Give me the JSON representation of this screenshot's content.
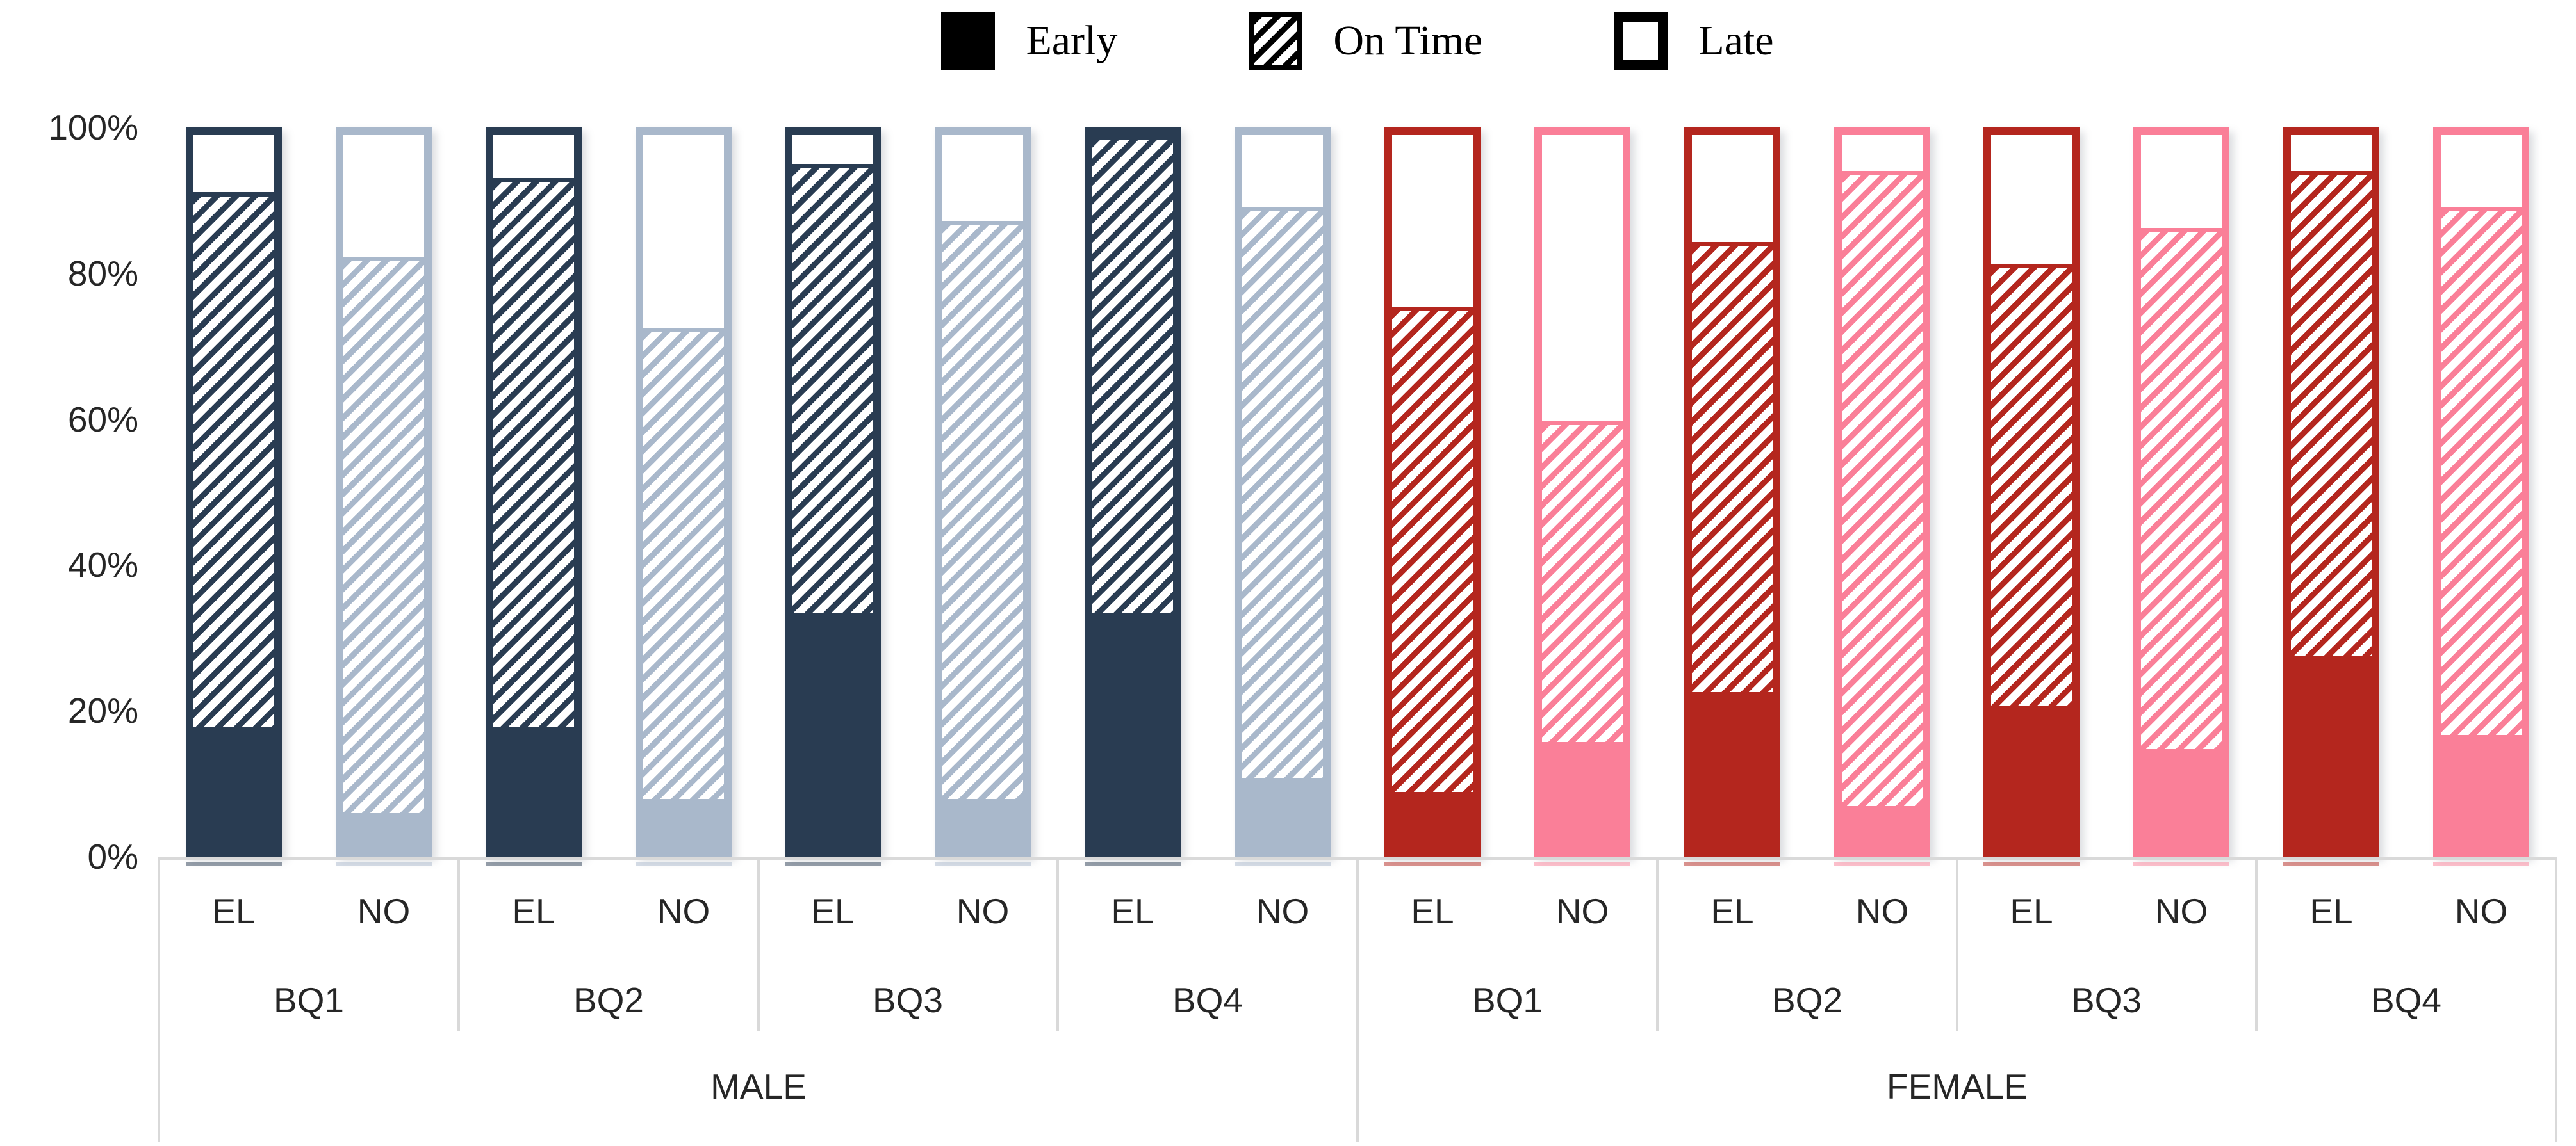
{
  "legend": {
    "items": [
      {
        "label": "Early",
        "swatch": "solid-black-square"
      },
      {
        "label": "On Time",
        "swatch": "hatched-square"
      },
      {
        "label": "Late",
        "swatch": "open-white-square"
      }
    ]
  },
  "y_axis": {
    "ticks": [
      "0%",
      "20%",
      "40%",
      "60%",
      "80%",
      "100%"
    ]
  },
  "x_axis": {
    "subgroups": [
      "EL",
      "NO"
    ],
    "groups": [
      "BQ1",
      "BQ2",
      "BQ3",
      "BQ4"
    ],
    "sections": [
      "MALE",
      "FEMALE"
    ]
  },
  "colors": {
    "male_el": "#293c52",
    "male_no": "#a9b8cb",
    "female_el": "#b4261e",
    "female_no": "#fa7f98",
    "axis_line": "#d9d9d9",
    "legend_black": "#000000",
    "text": "#262626"
  },
  "chart_data": {
    "type": "bar",
    "stacked": "percent",
    "title": "",
    "xlabel": "",
    "ylabel": "",
    "ylim": [
      0,
      100
    ],
    "grid": false,
    "legend_position": "top-center",
    "legend_entries": [
      "Early",
      "On Time",
      "Late"
    ],
    "sections": [
      {
        "label": "MALE",
        "el_color": "#293c52",
        "no_color": "#a9b8cb",
        "groups": [
          {
            "label": "BQ1",
            "bars": [
              {
                "label": "EL",
                "early": 17,
                "on_time": 75,
                "late": 8
              },
              {
                "label": "NO",
                "early": 5,
                "on_time": 78,
                "late": 17
              }
            ]
          },
          {
            "label": "BQ2",
            "bars": [
              {
                "label": "EL",
                "early": 17,
                "on_time": 77,
                "late": 6
              },
              {
                "label": "NO",
                "early": 7,
                "on_time": 66,
                "late": 27
              }
            ]
          },
          {
            "label": "BQ3",
            "bars": [
              {
                "label": "EL",
                "early": 33,
                "on_time": 63,
                "late": 4
              },
              {
                "label": "NO",
                "early": 7,
                "on_time": 81,
                "late": 12
              }
            ]
          },
          {
            "label": "BQ4",
            "bars": [
              {
                "label": "EL",
                "early": 33,
                "on_time": 67,
                "late": 0
              },
              {
                "label": "NO",
                "early": 10,
                "on_time": 80,
                "late": 10
              }
            ]
          }
        ]
      },
      {
        "label": "FEMALE",
        "el_color": "#b4261e",
        "no_color": "#fa7f98",
        "groups": [
          {
            "label": "BQ1",
            "bars": [
              {
                "label": "EL",
                "early": 8,
                "on_time": 68,
                "late": 24
              },
              {
                "label": "NO",
                "early": 15,
                "on_time": 45,
                "late": 40
              }
            ]
          },
          {
            "label": "BQ2",
            "bars": [
              {
                "label": "EL",
                "early": 22,
                "on_time": 63,
                "late": 15
              },
              {
                "label": "NO",
                "early": 6,
                "on_time": 89,
                "late": 5
              }
            ]
          },
          {
            "label": "BQ3",
            "bars": [
              {
                "label": "EL",
                "early": 20,
                "on_time": 62,
                "late": 18
              },
              {
                "label": "NO",
                "early": 14,
                "on_time": 73,
                "late": 13
              }
            ]
          },
          {
            "label": "BQ4",
            "bars": [
              {
                "label": "EL",
                "early": 27,
                "on_time": 68,
                "late": 5
              },
              {
                "label": "NO",
                "early": 16,
                "on_time": 74,
                "late": 10
              }
            ]
          }
        ]
      }
    ]
  }
}
